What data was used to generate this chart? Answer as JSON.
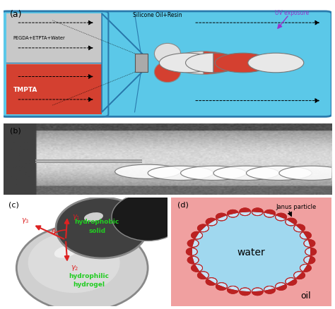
{
  "fig_width": 4.74,
  "fig_height": 4.39,
  "dpi": 100,
  "bg_color": "#ffffff",
  "panel_a": {
    "label": "(a)",
    "tube_color": "#5bc8e8",
    "tube_outline": "#2a7aad",
    "inlet_gray_color": "#c8c8c8",
    "inlet_red_color": "#d44030",
    "inlet_text_top": "PEGDA+ETPTA+Water",
    "inlet_text_bot": "TMPTA",
    "center_label": "Silicone Oil+Resin",
    "uv_label": "UV exposure",
    "uv_color": "#9933cc"
  },
  "panel_b": {
    "label": "(b)"
  },
  "panel_c": {
    "label": "(c)",
    "green_color": "#22cc22",
    "red_color": "#dd2222",
    "text_hydrophobic": "hydrophobic\nsolid",
    "text_hydrophilic": "hydrophilic\nhydrogel"
  },
  "panel_d": {
    "label": "(d)",
    "bg_color": "#f0a0a0",
    "water_color": "#a0d8ef",
    "particle_fill": "#c8e4f8",
    "particle_outline": "#bb2222",
    "water_label": "water",
    "oil_label": "oil",
    "janus_label": "Janus particle"
  }
}
